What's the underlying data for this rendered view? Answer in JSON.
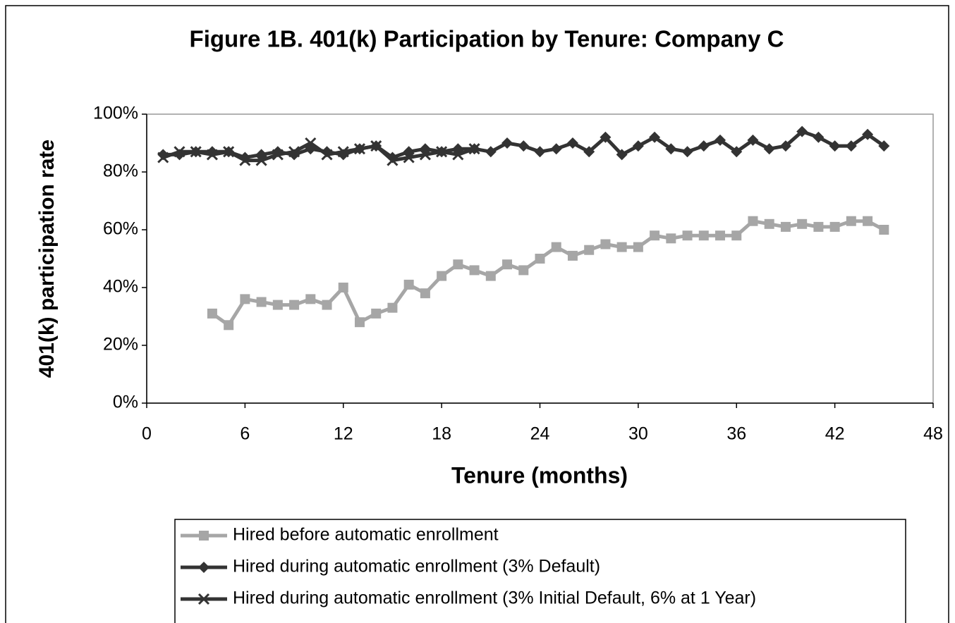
{
  "chart_data": {
    "type": "line",
    "title": "Figure 1B.  401(k) Participation by Tenure:  Company C",
    "x_label": "Tenure (months)",
    "y_label": "401(k) participation rate",
    "x": [
      1,
      2,
      3,
      4,
      5,
      6,
      7,
      8,
      9,
      10,
      11,
      12,
      13,
      14,
      15,
      16,
      17,
      18,
      19,
      20,
      21,
      22,
      23,
      24,
      25,
      26,
      27,
      28,
      29,
      30,
      31,
      32,
      33,
      34,
      35,
      36,
      37,
      38,
      39,
      40,
      41,
      42,
      43,
      44,
      45
    ],
    "series": [
      {
        "name": "Hired before automatic enrollment",
        "color": "#a6a6a6",
        "marker": "square",
        "values": [
          null,
          null,
          null,
          31,
          27,
          36,
          35,
          34,
          34,
          36,
          34,
          40,
          28,
          31,
          33,
          41,
          38,
          44,
          48,
          46,
          44,
          48,
          46,
          50,
          54,
          51,
          53,
          55,
          54,
          54,
          58,
          57,
          58,
          58,
          58,
          58,
          63,
          62,
          61,
          62,
          61,
          61,
          63,
          63,
          60
        ]
      },
      {
        "name": "Hired during automatic enrollment (3% Default)",
        "color": "#333333",
        "marker": "diamond",
        "values": [
          86,
          86,
          87,
          87,
          87,
          85,
          86,
          87,
          86,
          88,
          87,
          86,
          88,
          89,
          85,
          87,
          88,
          87,
          88,
          88,
          87,
          90,
          89,
          87,
          88,
          90,
          87,
          92,
          86,
          89,
          92,
          88,
          87,
          89,
          91,
          87,
          91,
          88,
          89,
          94,
          92,
          89,
          89,
          93,
          89
        ]
      },
      {
        "name": "Hired during automatic enrollment (3% Initial Default, 6% at 1 Year)",
        "color": "#333333",
        "marker": "cross",
        "values": [
          85,
          87,
          87,
          86,
          87,
          84,
          84,
          86,
          87,
          90,
          86,
          87,
          88,
          89,
          84,
          85,
          86,
          87,
          86,
          88,
          null,
          null,
          null,
          null,
          null,
          null,
          null,
          null,
          null,
          null,
          null,
          null,
          null,
          null,
          null,
          null,
          null,
          null,
          null,
          null,
          null,
          null,
          null,
          null,
          null
        ]
      }
    ],
    "xlim": [
      0,
      48
    ],
    "xticks": [
      0,
      6,
      12,
      18,
      24,
      30,
      36,
      42,
      48
    ],
    "ylim": [
      0,
      100
    ],
    "yticks": [
      {
        "value": 0,
        "label": "0%"
      },
      {
        "value": 20,
        "label": "20%"
      },
      {
        "value": 40,
        "label": "40%"
      },
      {
        "value": 60,
        "label": "60%"
      },
      {
        "value": 80,
        "label": "80%"
      },
      {
        "value": 100,
        "label": "100%"
      }
    ],
    "grid": false
  }
}
